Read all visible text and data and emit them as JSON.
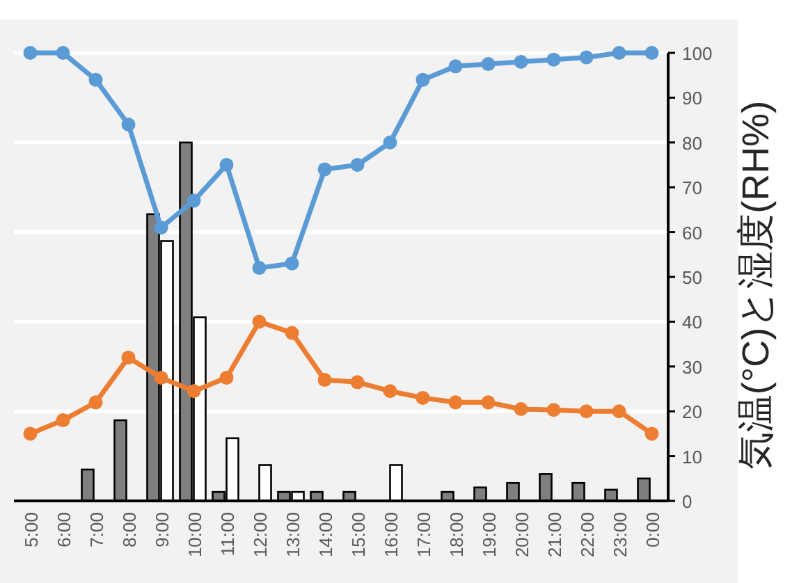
{
  "chart_data": {
    "type": "line",
    "categories": [
      "5:00",
      "6:00",
      "7:00",
      "8:00",
      "9:00",
      "10:00",
      "11:00",
      "12:00",
      "13:00",
      "14:00",
      "15:00",
      "16:00",
      "17:00",
      "18:00",
      "19:00",
      "20:00",
      "21:00",
      "22:00",
      "23:00",
      "0:00"
    ],
    "series": [
      {
        "type": "bar",
        "axis": "y2",
        "color": "#7f7f7f",
        "values": [
          null,
          null,
          7,
          18,
          64,
          80,
          2,
          null,
          2,
          2,
          2,
          null,
          null,
          2,
          3,
          4,
          6,
          4,
          2.5,
          5
        ]
      },
      {
        "type": "bar",
        "axis": "y2",
        "color": "#ffffff",
        "values": [
          null,
          null,
          null,
          null,
          58,
          41,
          14,
          8,
          2,
          null,
          null,
          8,
          null,
          null,
          null,
          null,
          null,
          null,
          null,
          null
        ]
      },
      {
        "axis": "y2",
        "color": "#5b9bd5",
        "values": [
          100,
          100,
          94,
          84,
          61,
          67,
          75,
          52,
          53,
          74,
          75,
          80,
          94,
          97,
          97.5,
          98,
          98.5,
          99,
          100,
          100
        ]
      },
      {
        "axis": "y2",
        "color": "#ed7d31",
        "values": [
          15,
          18,
          22,
          32,
          27.5,
          24.5,
          27.5,
          40,
          37.5,
          27,
          26.5,
          24.5,
          23,
          22,
          22,
          20.5,
          20.3,
          20,
          20,
          15
        ]
      }
    ],
    "y2label": "気温(°C)と湿度(RH%)",
    "y2lim": [
      0,
      100
    ],
    "y2ticks": [
      0,
      10,
      20,
      30,
      40,
      50,
      60,
      70,
      80,
      90,
      100
    ],
    "grid": "y",
    "marker": "circle",
    "line_style": "solid"
  }
}
